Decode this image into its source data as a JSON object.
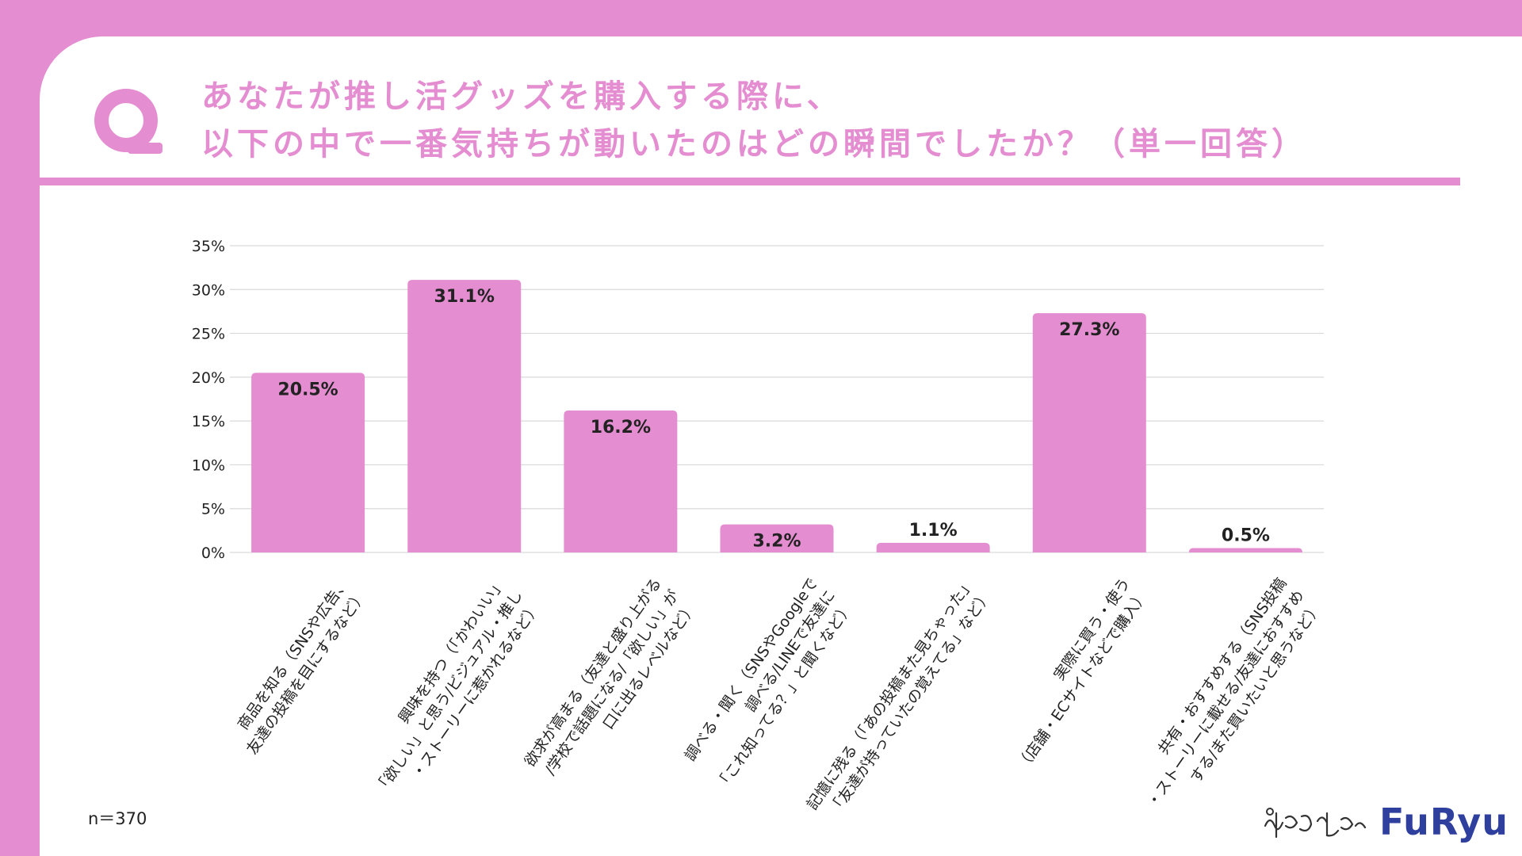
{
  "header": {
    "q_label": "Q",
    "title_line1": "あなたが推し活グッズを購入する際に、",
    "title_line2": "以下の中で一番気持ちが動いたのはどの瞬間でしたか？（単一回答）"
  },
  "footer": {
    "sample_size": "n＝370",
    "brand": "FuRyu",
    "signature_text": "僕と私と"
  },
  "colors": {
    "accent": "#e48dd1",
    "grid": "#d9d9d9",
    "text": "#222222",
    "brand": "#2f3f9e"
  },
  "chart_data": {
    "type": "bar",
    "title": "",
    "xlabel": "",
    "ylabel": "",
    "ylim": [
      0,
      35
    ],
    "y_ticks": [
      0,
      5,
      10,
      15,
      20,
      25,
      30,
      35
    ],
    "y_tick_suffix": "%",
    "grid": true,
    "legend": "none",
    "categories": [
      [
        "商品を知る（SNSや広告、",
        "友達の投稿を目にするなど）"
      ],
      [
        "興味を持つ（「かわいい」",
        "「欲しい」と思う/ビジュアル・推し",
        "・ストーリーに惹かれるなど）"
      ],
      [
        "欲求が高まる（友達と盛り上がる",
        "/学校で話題になる/「欲しい」が",
        "口に出るレベルなど）"
      ],
      [
        "調べる・聞く（SNSやGoogleで",
        "調べる/LINEで友達に",
        "「これ知ってる？」と聞くなど）"
      ],
      [
        "記憶に残る（「あの投稿また見ちゃった」",
        "「友達が持っていたの覚えてる」など）"
      ],
      [
        "実際に買う・使う",
        "（店舗・ECサイトなどで購入）"
      ],
      [
        "共有・おすすめする（SNS投稿",
        "・ストーリーに載せる/友達におすすめ",
        "する/また買いたいと思うなど）"
      ]
    ],
    "values": [
      20.5,
      31.1,
      16.2,
      3.2,
      1.1,
      27.3,
      0.5
    ],
    "data_labels": [
      "20.5%",
      "31.1%",
      "16.2%",
      "3.2%",
      "1.1%",
      "27.3%",
      "0.5%"
    ]
  }
}
